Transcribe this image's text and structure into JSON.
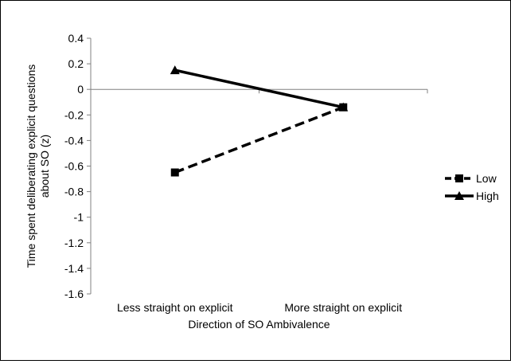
{
  "chart_data": {
    "type": "line",
    "title": "",
    "xlabel": "Direction of SO Ambivalence",
    "ylabel_lines": [
      "Time spent deliberating explicit questions",
      "about SO (z)"
    ],
    "categories": [
      "Less straight on explicit",
      "More straight on explicit"
    ],
    "ylim": [
      -1.6,
      0.4
    ],
    "yticks": [
      "0.4",
      "0.2",
      "0",
      "-0.2",
      "-0.4",
      "-0.6",
      "-0.8",
      "-1",
      "-1.2",
      "-1.4",
      "-1.6"
    ],
    "ytick_values": [
      0.4,
      0.2,
      0,
      -0.2,
      -0.4,
      -0.6,
      -0.8,
      -1,
      -1.2,
      -1.4,
      -1.6
    ],
    "grid": false,
    "legend_position": "right",
    "series": [
      {
        "name": "Low",
        "values": [
          -0.65,
          -0.14
        ],
        "marker": "square",
        "dash": "dashed",
        "color": "#000000"
      },
      {
        "name": "High",
        "values": [
          0.15,
          -0.14
        ],
        "marker": "triangle",
        "dash": "solid",
        "color": "#000000"
      }
    ]
  }
}
